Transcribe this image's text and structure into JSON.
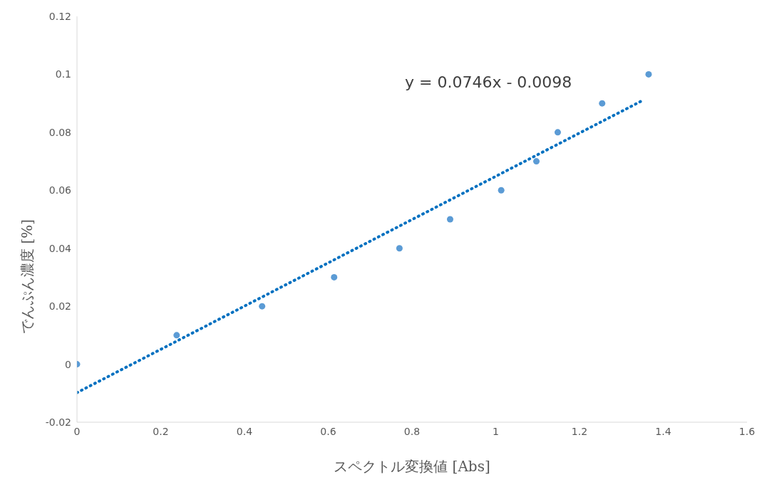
{
  "chart_data": {
    "type": "scatter",
    "xlabel": "スペクトル変換値 [Abs]",
    "ylabel": "でんぷん濃度 [%]",
    "annotations": [
      "y = 0.0746x - 0.0098"
    ],
    "xlim": [
      0,
      1.6
    ],
    "xticks": [
      0,
      0.2,
      0.4,
      0.6,
      0.8,
      1,
      1.2,
      1.4,
      1.6
    ],
    "ylim": [
      -0.02,
      0.12
    ],
    "yticks": [
      -0.02,
      0,
      0.02,
      0.04,
      0.06,
      0.08,
      0.1,
      0.12
    ],
    "grid": false,
    "legend": false,
    "series": [
      {
        "color": "#5b9bd5",
        "marker": "circle",
        "x": [
          0,
          0.238,
          0.442,
          0.614,
          0.77,
          0.891,
          1.013,
          1.097,
          1.148,
          1.254,
          1.365
        ],
        "values": [
          0,
          0.01,
          0.02,
          0.03,
          0.04,
          0.05,
          0.06,
          0.07,
          0.08,
          0.09,
          0.1
        ]
      },
      {
        "type": "line",
        "color": "#0070c0",
        "marker": "none",
        "line_style": "dotted",
        "x": [
          0,
          1.352
        ],
        "values": [
          -0.0098,
          0.0911
        ]
      }
    ]
  }
}
